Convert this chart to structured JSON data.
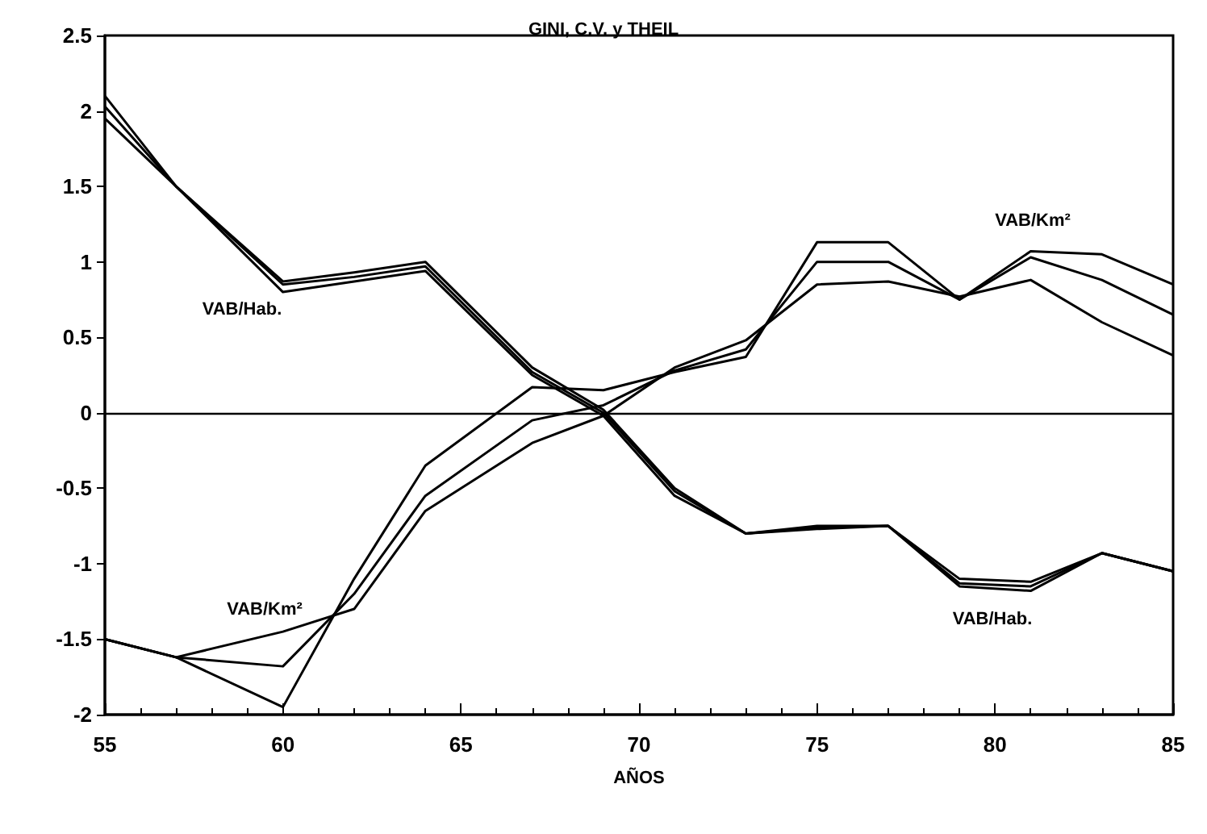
{
  "chart_data": {
    "type": "line",
    "title": "GINI, C.V. y THEIL",
    "xlabel": "AÑOS",
    "x": [
      55,
      57,
      60,
      62,
      64,
      67,
      69,
      71,
      73,
      75,
      77,
      79,
      81,
      83,
      85
    ],
    "series": [
      {
        "color": "#000000",
        "values": [
          2.1,
          1.5,
          0.87,
          0.93,
          1.0,
          0.3,
          0.02,
          -0.5,
          -0.8,
          -0.75,
          -0.75,
          -1.1,
          -1.12,
          -0.93,
          -1.05
        ]
      },
      {
        "color": "#000000",
        "values": [
          2.03,
          1.5,
          0.85,
          0.9,
          0.97,
          0.27,
          0,
          -0.52,
          -0.8,
          -0.76,
          -0.75,
          -1.13,
          -1.15,
          -0.93,
          -1.05
        ]
      },
      {
        "color": "#000000",
        "values": [
          1.95,
          1.5,
          0.8,
          0.87,
          0.94,
          0.25,
          -0.02,
          -0.55,
          -0.8,
          -0.77,
          -0.75,
          -1.15,
          -1.18,
          -0.93,
          -1.05
        ]
      },
      {
        "color": "#000000",
        "values": [
          -1.5,
          -1.62,
          -1.95,
          -1.1,
          -0.35,
          0.17,
          0.15,
          0.27,
          0.37,
          1.13,
          1.13,
          0.75,
          1.07,
          1.05,
          0.85
        ]
      },
      {
        "color": "#000000",
        "values": [
          -1.5,
          -1.62,
          -1.68,
          -1.2,
          -0.55,
          -0.05,
          0.05,
          0.28,
          0.42,
          1.0,
          1.0,
          0.75,
          1.03,
          0.88,
          0.65
        ]
      },
      {
        "color": "#000000",
        "values": [
          -1.5,
          -1.62,
          -1.45,
          -1.3,
          -0.65,
          -0.2,
          -0.02,
          0.3,
          0.48,
          0.85,
          0.87,
          0.77,
          0.88,
          0.6,
          0.38
        ]
      }
    ],
    "xlim": [
      55,
      85
    ],
    "xticks": [
      55,
      60,
      65,
      70,
      75,
      80,
      85
    ],
    "ylim": [
      -2,
      2.5
    ],
    "yticks": [
      -2,
      -1.5,
      -1,
      -0.5,
      0,
      0.5,
      1,
      1.5,
      2,
      2.5
    ],
    "ref_lines": [
      {
        "axis": "y",
        "value": 0
      }
    ],
    "annotations": [
      "VAB/Hab.",
      "VAB/Hab.",
      "VAB/Km²",
      "VAB/Km²"
    ],
    "grid": false,
    "marker": "none",
    "line_style": "solid"
  }
}
